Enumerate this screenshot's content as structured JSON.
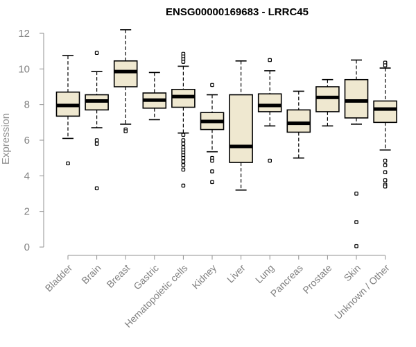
{
  "chart_data": {
    "type": "boxplot",
    "title": "ENSG00000169683 - LRRC45",
    "xlabel": "",
    "ylabel": "Expression",
    "ylim": [
      0,
      12.5
    ],
    "yticks": [
      0,
      2,
      4,
      6,
      8,
      10,
      12
    ],
    "categories": [
      "Bladder",
      "Brain",
      "Breast",
      "Gastric",
      "Hematopoietic cells",
      "Kidney",
      "Liver",
      "Lung",
      "Pancreas",
      "Prostate",
      "Skin",
      "Unknown / Other"
    ],
    "boxes": [
      {
        "category": "Bladder",
        "whisker_low": 6.1,
        "q1": 7.35,
        "median": 7.95,
        "q3": 8.7,
        "whisker_high": 10.75,
        "outliers": [
          4.7
        ]
      },
      {
        "category": "Brain",
        "whisker_low": 6.7,
        "q1": 7.7,
        "median": 8.2,
        "q3": 8.55,
        "whisker_high": 9.85,
        "outliers": [
          10.9,
          6.0,
          5.8,
          3.3
        ]
      },
      {
        "category": "Breast",
        "whisker_low": 6.9,
        "q1": 9.0,
        "median": 9.85,
        "q3": 10.45,
        "whisker_high": 12.2,
        "outliers": [
          6.6,
          6.5
        ]
      },
      {
        "category": "Gastric",
        "whisker_low": 7.15,
        "q1": 7.8,
        "median": 8.25,
        "q3": 8.65,
        "whisker_high": 9.8,
        "outliers": []
      },
      {
        "category": "Hematopoietic cells",
        "whisker_low": 6.4,
        "q1": 7.85,
        "median": 8.45,
        "q3": 8.85,
        "whisker_high": 10.15,
        "outliers": [
          10.85,
          10.7,
          10.55,
          10.4,
          6.3,
          6.0,
          5.8,
          5.6,
          5.45,
          5.3,
          5.15,
          5.0,
          4.8,
          4.6,
          4.35,
          3.45
        ]
      },
      {
        "category": "Kidney",
        "whisker_low": 5.35,
        "q1": 6.6,
        "median": 7.05,
        "q3": 7.55,
        "whisker_high": 8.55,
        "outliers": [
          9.1,
          5.0,
          4.85,
          4.25,
          3.65
        ]
      },
      {
        "category": "Liver",
        "whisker_low": 3.2,
        "q1": 4.75,
        "median": 5.65,
        "q3": 8.55,
        "whisker_high": 10.45,
        "outliers": []
      },
      {
        "category": "Lung",
        "whisker_low": 6.8,
        "q1": 7.6,
        "median": 7.95,
        "q3": 8.6,
        "whisker_high": 9.9,
        "outliers": [
          10.5,
          4.85
        ]
      },
      {
        "category": "Pancreas",
        "whisker_low": 5.0,
        "q1": 6.45,
        "median": 6.95,
        "q3": 7.7,
        "whisker_high": 8.75,
        "outliers": []
      },
      {
        "category": "Prostate",
        "whisker_low": 6.8,
        "q1": 7.6,
        "median": 8.4,
        "q3": 9.0,
        "whisker_high": 9.4,
        "outliers": []
      },
      {
        "category": "Skin",
        "whisker_low": 6.9,
        "q1": 7.25,
        "median": 8.2,
        "q3": 9.4,
        "whisker_high": 10.5,
        "outliers": [
          3.0,
          1.4,
          0.05
        ]
      },
      {
        "category": "Unknown / Other",
        "whisker_low": 5.45,
        "q1": 7.0,
        "median": 7.75,
        "q3": 8.2,
        "whisker_high": 10.05,
        "outliers": [
          10.35,
          10.2,
          4.85,
          4.6,
          4.2,
          3.75,
          3.5,
          3.4
        ]
      }
    ],
    "colors": {
      "box_fill": "#efe8d0",
      "box_stroke": "#000000",
      "axis": "#909090",
      "text": "#808080"
    }
  }
}
